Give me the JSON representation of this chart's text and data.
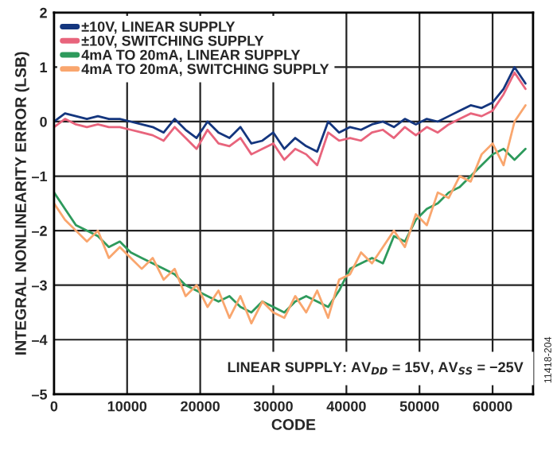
{
  "chart_data": {
    "type": "line",
    "xlabel": "CODE",
    "ylabel": "INTEGRAL NONLINEARITY ERROR (LSB)",
    "x": [
      0,
      1500,
      3000,
      4500,
      6000,
      7500,
      9000,
      10500,
      12000,
      13500,
      15000,
      16500,
      18000,
      19500,
      21000,
      22500,
      24000,
      25500,
      27000,
      28500,
      30000,
      31500,
      33000,
      34500,
      36000,
      37500,
      39000,
      40500,
      42000,
      43500,
      45000,
      46500,
      48000,
      49500,
      51000,
      52500,
      54000,
      55500,
      57000,
      58500,
      60000,
      61500,
      63000,
      64500
    ],
    "series": [
      {
        "name": "±10V, LINEAR SUPPLY",
        "color": "#14367e",
        "values": [
          0.0,
          0.15,
          0.1,
          0.05,
          0.1,
          0.05,
          0.05,
          0.0,
          -0.05,
          -0.1,
          -0.2,
          0.05,
          -0.15,
          -0.3,
          0.0,
          -0.2,
          -0.3,
          -0.1,
          -0.4,
          -0.35,
          -0.2,
          -0.5,
          -0.3,
          -0.45,
          -0.55,
          0.0,
          -0.2,
          -0.1,
          -0.15,
          -0.05,
          0.0,
          -0.1,
          0.05,
          -0.05,
          0.05,
          0.0,
          0.1,
          0.2,
          0.3,
          0.25,
          0.35,
          0.6,
          1.0,
          0.7
        ]
      },
      {
        "name": "±10V, SWITCHING SUPPLY",
        "color": "#e8647c",
        "values": [
          -0.1,
          0.05,
          -0.05,
          -0.1,
          -0.05,
          -0.1,
          -0.1,
          -0.15,
          -0.2,
          -0.25,
          -0.35,
          -0.1,
          -0.3,
          -0.5,
          -0.15,
          -0.4,
          -0.45,
          -0.3,
          -0.6,
          -0.5,
          -0.4,
          -0.7,
          -0.5,
          -0.6,
          -0.8,
          -0.2,
          -0.35,
          -0.3,
          -0.35,
          -0.2,
          -0.15,
          -0.3,
          -0.1,
          -0.25,
          -0.1,
          -0.2,
          -0.05,
          0.05,
          0.15,
          0.1,
          0.2,
          0.5,
          0.9,
          0.6
        ]
      },
      {
        "name": "4mA TO 20mA, LINEAR SUPPLY",
        "color": "#2e9a5c",
        "values": [
          -1.3,
          -1.6,
          -1.9,
          -2.0,
          -2.1,
          -2.3,
          -2.2,
          -2.4,
          -2.5,
          -2.6,
          -2.7,
          -2.8,
          -3.0,
          -3.1,
          -3.2,
          -3.3,
          -3.2,
          -3.4,
          -3.5,
          -3.3,
          -3.4,
          -3.5,
          -3.3,
          -3.2,
          -3.3,
          -3.4,
          -3.1,
          -2.7,
          -2.6,
          -2.5,
          -2.6,
          -2.1,
          -2.2,
          -1.8,
          -1.6,
          -1.5,
          -1.3,
          -1.2,
          -1.0,
          -0.8,
          -0.6,
          -0.5,
          -0.7,
          -0.5
        ]
      },
      {
        "name": "4mA TO 20mA, SWITCHING SUPPLY",
        "color": "#f9a66e",
        "values": [
          -1.5,
          -1.8,
          -2.0,
          -2.2,
          -2.0,
          -2.5,
          -2.3,
          -2.5,
          -2.7,
          -2.5,
          -2.9,
          -2.7,
          -3.2,
          -3.0,
          -3.4,
          -3.1,
          -3.6,
          -3.2,
          -3.7,
          -3.3,
          -3.5,
          -3.6,
          -3.2,
          -3.5,
          -3.1,
          -3.6,
          -2.9,
          -2.8,
          -2.4,
          -2.6,
          -2.3,
          -2.0,
          -2.3,
          -1.7,
          -1.9,
          -1.3,
          -1.4,
          -1.0,
          -1.1,
          -0.6,
          -0.4,
          -0.8,
          0.0,
          0.3
        ]
      }
    ],
    "xlim": [
      0,
      65535
    ],
    "xticks": [
      0,
      10000,
      20000,
      30000,
      40000,
      50000,
      60000
    ],
    "ylim": [
      -5,
      2
    ],
    "yticks": [
      {
        "value": -5,
        "label": "–5"
      },
      {
        "value": -4,
        "label": "–4"
      },
      {
        "value": -3,
        "label": "–3"
      },
      {
        "value": -2,
        "label": "–2"
      },
      {
        "value": -1,
        "label": "–1"
      },
      0,
      1,
      2
    ],
    "grid": true,
    "legend": "top left",
    "line_style": "solid",
    "marker": "none",
    "annotations": [
      "LINEAR SUPPLY: AV$_{DD}$ = 15V, AV$_{SS}$ = −25V",
      "11418-204"
    ]
  }
}
